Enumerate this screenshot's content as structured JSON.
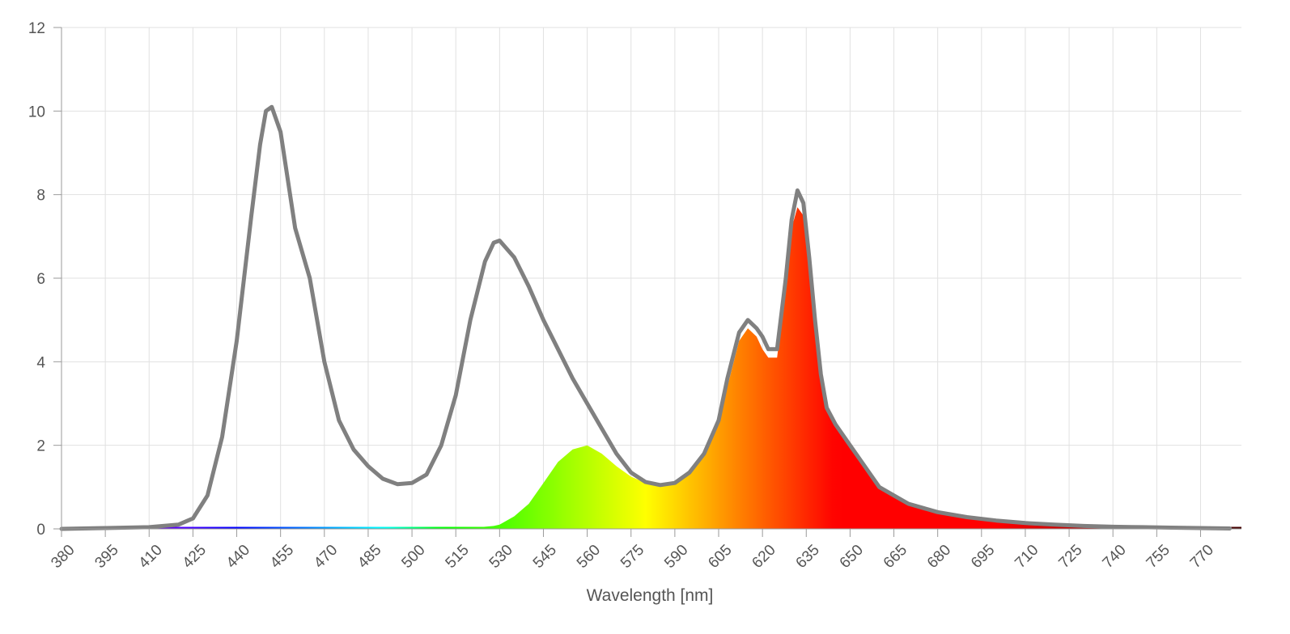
{
  "chart_data": {
    "type": "area",
    "xlabel": "Wavelength [nm]",
    "ylabel": "",
    "xlim": [
      380,
      784
    ],
    "ylim": [
      0,
      12
    ],
    "grid": true,
    "legend": "none",
    "y_ticks": [
      "0",
      "2",
      "4",
      "6",
      "8",
      "10",
      "12"
    ],
    "x_ticks": [
      "380",
      "395",
      "410",
      "425",
      "440",
      "455",
      "470",
      "485",
      "500",
      "515",
      "530",
      "545",
      "560",
      "575",
      "590",
      "605",
      "620",
      "635",
      "650",
      "665",
      "680",
      "695",
      "710",
      "725",
      "740",
      "755",
      "770"
    ],
    "colors": {
      "outline": "#808080",
      "grid": "#e1e1e1",
      "axis": "#9a9a9a",
      "text": "#555555"
    },
    "series": [
      {
        "style": "outline",
        "x": [
          380,
          395,
          410,
          420,
          425,
          430,
          435,
          440,
          445,
          448,
          450,
          452,
          455,
          460,
          465,
          470,
          475,
          480,
          485,
          490,
          495,
          500,
          505,
          510,
          515,
          520,
          525,
          528,
          530,
          535,
          540,
          545,
          550,
          555,
          560,
          565,
          570,
          575,
          580,
          585,
          590,
          595,
          600,
          605,
          608,
          612,
          615,
          618,
          620,
          622,
          625,
          628,
          630,
          632,
          634,
          636,
          638,
          640,
          642,
          645,
          650,
          655,
          660,
          665,
          670,
          680,
          690,
          700,
          710,
          720,
          730,
          740,
          750,
          760,
          770,
          780
        ],
        "y": [
          0.0,
          0.02,
          0.04,
          0.1,
          0.25,
          0.8,
          2.2,
          4.5,
          7.5,
          9.2,
          10.0,
          10.1,
          9.5,
          7.2,
          6.0,
          4.0,
          2.6,
          1.9,
          1.5,
          1.2,
          1.07,
          1.1,
          1.3,
          2.0,
          3.2,
          5.0,
          6.4,
          6.85,
          6.9,
          6.5,
          5.8,
          5.0,
          4.3,
          3.6,
          3.0,
          2.4,
          1.8,
          1.35,
          1.12,
          1.05,
          1.1,
          1.35,
          1.8,
          2.6,
          3.6,
          4.7,
          5.0,
          4.8,
          4.6,
          4.3,
          4.3,
          6.0,
          7.4,
          8.1,
          7.8,
          6.5,
          5.0,
          3.7,
          2.9,
          2.5,
          2.0,
          1.5,
          1.0,
          0.8,
          0.6,
          0.4,
          0.28,
          0.2,
          0.14,
          0.1,
          0.07,
          0.05,
          0.04,
          0.03,
          0.02,
          0.01
        ]
      },
      {
        "style": "spectral-fill",
        "x": [
          380,
          395,
          410,
          420,
          425,
          430,
          435,
          440,
          445,
          448,
          450,
          452,
          455,
          460,
          465,
          470,
          475,
          480,
          485,
          490,
          495,
          500,
          505,
          510,
          515,
          520,
          525,
          528,
          530,
          535,
          540,
          545,
          550,
          555,
          560,
          565,
          570,
          575,
          580,
          585,
          590,
          595,
          600,
          605,
          608,
          612,
          615,
          618,
          620,
          622,
          625,
          628,
          630,
          632,
          634,
          636,
          638,
          640,
          642,
          645,
          650,
          655,
          660,
          665,
          670,
          680,
          690,
          700,
          710,
          720,
          730,
          740,
          750,
          760,
          770,
          780
        ],
        "y": [
          0.0,
          0.0,
          0.0,
          0.0,
          0.0,
          0.0,
          0.0,
          0.0,
          0.0,
          0.0,
          0.0,
          0.0,
          0.0,
          0.0,
          0.0,
          0.0,
          0.0,
          0.0,
          0.0,
          0.0,
          0.0,
          0.0,
          0.0,
          0.0,
          0.01,
          0.02,
          0.05,
          0.07,
          0.1,
          0.3,
          0.6,
          1.1,
          1.6,
          1.9,
          2.0,
          1.8,
          1.5,
          1.25,
          1.1,
          1.05,
          1.1,
          1.35,
          1.8,
          2.5,
          3.4,
          4.5,
          4.8,
          4.6,
          4.3,
          4.1,
          4.1,
          5.8,
          7.2,
          7.7,
          7.5,
          6.4,
          5.0,
          3.7,
          2.9,
          2.5,
          2.0,
          1.5,
          1.0,
          0.8,
          0.6,
          0.4,
          0.28,
          0.2,
          0.14,
          0.1,
          0.07,
          0.05,
          0.04,
          0.03,
          0.02,
          0.01
        ]
      }
    ]
  }
}
